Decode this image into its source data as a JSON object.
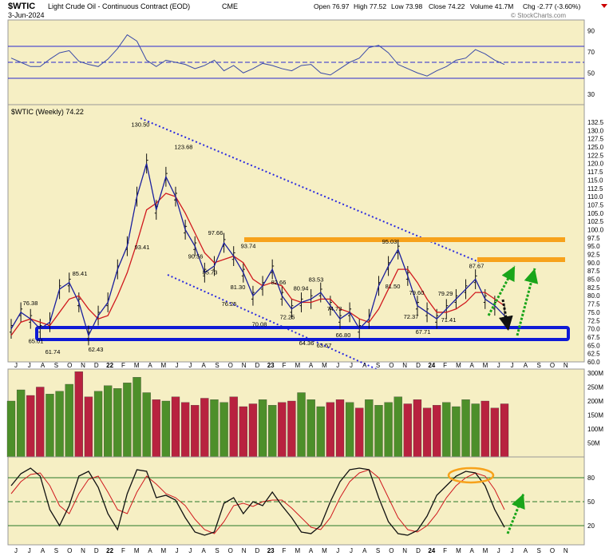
{
  "header": {
    "symbol": "$WTIC",
    "name": "Light Crude Oil - Continuous Contract (EOD)",
    "exchange": "CME",
    "date": "3-Jun-2024",
    "watermark": "© StockCharts.com",
    "quote": {
      "open": "Open 76.97",
      "high": "High 77.52",
      "low": "Low 73.98",
      "close": "Close 74.22",
      "volume": "Volume 41.7M",
      "chg": "Chg -2.77 (-3.60%)"
    }
  },
  "colors": {
    "panel_bg": "#f6efc4",
    "price_line": "#1a1f9e",
    "ma_line": "#d0191e",
    "resistance": "#f7a21b",
    "support": "#0f1ad6",
    "vol_up": "#4d8f2a",
    "vol_down": "#b8223f",
    "arrow_green": "#1aa51a",
    "arrow_black": "#111111"
  },
  "chart_data": [
    {
      "type": "line",
      "panel": "RSI",
      "y_ticks": [
        "90",
        "70",
        "50",
        "30"
      ],
      "ylim": [
        20,
        100
      ],
      "x": [
        0,
        3,
        6,
        9,
        12,
        15,
        18,
        21,
        24,
        27,
        30,
        33,
        36,
        39,
        42,
        45,
        48,
        51,
        54,
        57,
        60,
        63,
        66,
        69,
        72,
        75,
        78,
        81,
        84,
        87,
        90,
        93,
        96,
        99,
        102,
        105,
        108,
        111,
        114,
        117,
        120,
        123,
        126,
        129,
        132,
        135,
        138,
        141,
        144,
        147,
        150,
        153
      ],
      "series": [
        {
          "values": [
            64,
            60,
            56,
            56,
            63,
            69,
            71,
            61,
            58,
            56,
            63,
            73,
            86,
            80,
            62,
            56,
            62,
            60,
            58,
            54,
            57,
            62,
            52,
            57,
            50,
            54,
            59,
            57,
            54,
            52,
            57,
            58,
            50,
            48,
            54,
            60,
            64,
            74,
            76,
            69,
            58,
            54,
            50,
            47,
            52,
            56,
            62,
            64,
            72,
            68,
            62,
            58
          ]
        }
      ]
    },
    {
      "type": "line",
      "title": "$WTIC (Weekly) 74.22",
      "ylabel": "",
      "y_ticks": [
        "132.5",
        "130.0",
        "127.5",
        "125.0",
        "122.5",
        "120.0",
        "117.5",
        "115.0",
        "112.5",
        "110.0",
        "107.5",
        "105.0",
        "102.5",
        "100.0",
        "97.5",
        "95.0",
        "92.5",
        "90.0",
        "87.5",
        "85.0",
        "82.5",
        "80.0",
        "77.5",
        "75.0",
        "72.5",
        "70.0",
        "67.5",
        "65.0",
        "62.5",
        "60.0"
      ],
      "ylim": [
        60,
        132.5
      ],
      "x_labels": [
        "J",
        "J",
        "A",
        "S",
        "O",
        "N",
        "D",
        "22",
        "F",
        "M",
        "A",
        "M",
        "J",
        "J",
        "A",
        "S",
        "O",
        "N",
        "D",
        "23",
        "F",
        "M",
        "A",
        "M",
        "J",
        "J",
        "A",
        "S",
        "O",
        "N",
        "D",
        "24",
        "F",
        "M",
        "A",
        "M",
        "J",
        "J",
        "A",
        "S",
        "O",
        "N"
      ],
      "x": [
        0,
        3,
        6,
        9,
        12,
        15,
        18,
        21,
        24,
        27,
        30,
        33,
        36,
        39,
        42,
        45,
        48,
        51,
        54,
        57,
        60,
        63,
        66,
        69,
        72,
        75,
        78,
        81,
        84,
        87,
        90,
        93,
        96,
        99,
        102,
        105,
        108,
        111,
        114,
        117,
        120,
        123,
        126,
        129,
        132,
        135,
        138,
        141,
        144,
        147,
        150,
        153
      ],
      "series": [
        {
          "name": "price",
          "values": [
            70,
            75,
            73,
            70,
            72,
            82,
            84,
            78,
            68,
            74,
            78,
            88,
            95,
            110,
            120,
            106,
            116,
            110,
            100,
            95,
            87,
            89,
            96,
            92,
            87,
            80,
            83,
            88,
            80,
            76,
            78,
            79,
            81,
            77,
            73,
            75,
            70,
            73,
            83,
            89,
            94,
            86,
            77,
            75,
            73,
            76,
            79,
            82,
            85,
            79,
            77,
            74
          ]
        },
        {
          "name": "ma",
          "values": [
            68,
            72,
            73,
            72,
            71,
            75,
            79,
            80,
            76,
            73,
            74,
            80,
            87,
            96,
            106,
            108,
            111,
            110,
            105,
            99,
            93,
            90,
            91,
            92,
            90,
            85,
            83,
            84,
            83,
            79,
            78,
            78,
            79,
            79,
            76,
            75,
            73,
            72,
            76,
            82,
            88,
            88,
            84,
            79,
            75,
            75,
            76,
            78,
            81,
            81,
            79,
            77
          ]
        }
      ],
      "annotations": [
        "130.50",
        "123.68",
        "97.66",
        "93.74",
        "95.03",
        "87.67",
        "85.41",
        "93.41",
        "90.56",
        "85.73",
        "81.30",
        "82.66",
        "80.94",
        "83.53",
        "81.50",
        "79.60",
        "79.29",
        "76.38",
        "76.25",
        "74.73",
        "72.25",
        "72.37",
        "71.41",
        "65.01",
        "61.74",
        "62.43",
        "70.08",
        "64.36",
        "63.57",
        "66.80",
        "67.71"
      ]
    },
    {
      "type": "bar",
      "panel": "Volume",
      "y_ticks": [
        "300M",
        "250M",
        "200M",
        "150M",
        "100M",
        "50M"
      ],
      "ylim": [
        0,
        300
      ],
      "x": [
        0,
        3,
        6,
        9,
        12,
        15,
        18,
        21,
        24,
        27,
        30,
        33,
        36,
        39,
        42,
        45,
        48,
        51,
        54,
        57,
        60,
        63,
        66,
        69,
        72,
        75,
        78,
        81,
        84,
        87,
        90,
        93,
        96,
        99,
        102,
        105,
        108,
        111,
        114,
        117,
        120,
        123,
        126,
        129,
        132,
        135,
        138,
        141,
        144,
        147,
        150,
        153
      ],
      "values": [
        200,
        240,
        220,
        250,
        225,
        235,
        260,
        305,
        215,
        235,
        255,
        245,
        265,
        285,
        230,
        205,
        200,
        215,
        195,
        185,
        210,
        205,
        195,
        215,
        180,
        190,
        205,
        185,
        195,
        200,
        230,
        205,
        180,
        195,
        205,
        195,
        175,
        205,
        185,
        195,
        215,
        190,
        205,
        175,
        185,
        195,
        180,
        205,
        190,
        200,
        175,
        190
      ]
    },
    {
      "type": "line",
      "panel": "Stochastic",
      "y_ticks": [
        "80",
        "50",
        "20"
      ],
      "ylim": [
        0,
        100
      ],
      "x": [
        0,
        3,
        6,
        9,
        12,
        15,
        18,
        21,
        24,
        27,
        30,
        33,
        36,
        39,
        42,
        45,
        48,
        51,
        54,
        57,
        60,
        63,
        66,
        69,
        72,
        75,
        78,
        81,
        84,
        87,
        90,
        93,
        96,
        99,
        102,
        105,
        108,
        111,
        114,
        117,
        120,
        123,
        126,
        129,
        132,
        135,
        138,
        141,
        144,
        147,
        150,
        153
      ],
      "series": [
        {
          "name": "%K",
          "values": [
            70,
            85,
            92,
            82,
            40,
            20,
            45,
            82,
            88,
            68,
            35,
            15,
            60,
            90,
            88,
            55,
            58,
            52,
            30,
            12,
            8,
            12,
            48,
            55,
            35,
            50,
            45,
            62,
            45,
            30,
            12,
            10,
            20,
            50,
            75,
            90,
            92,
            90,
            55,
            25,
            10,
            8,
            14,
            32,
            58,
            70,
            82,
            88,
            86,
            70,
            40,
            18
          ]
        },
        {
          "name": "%D",
          "values": [
            60,
            75,
            84,
            86,
            70,
            45,
            35,
            60,
            78,
            82,
            62,
            40,
            35,
            62,
            82,
            72,
            60,
            55,
            45,
            28,
            15,
            10,
            25,
            45,
            48,
            44,
            50,
            52,
            52,
            42,
            30,
            18,
            15,
            30,
            55,
            75,
            86,
            90,
            80,
            55,
            30,
            15,
            12,
            20,
            35,
            55,
            70,
            80,
            86,
            82,
            65,
            40
          ]
        }
      ]
    }
  ],
  "volume_labels": {
    "ticks": [
      "300M",
      "250M",
      "200M",
      "150M",
      "100M",
      "50M"
    ]
  },
  "stoch_labels": {
    "ticks": [
      "80",
      "50",
      "20"
    ]
  }
}
